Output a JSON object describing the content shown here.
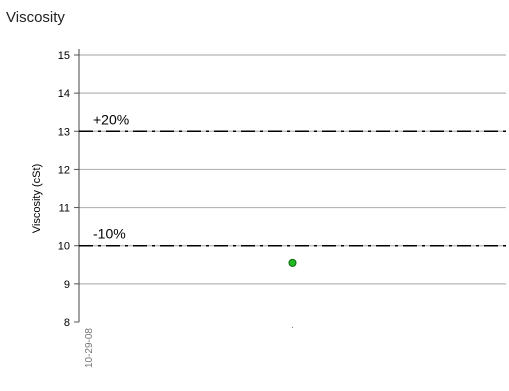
{
  "chart_data": {
    "type": "scatter",
    "title": "Viscosity",
    "xlabel": "",
    "ylabel": "Viscosity (cSt)",
    "ylim": [
      8,
      15
    ],
    "yticks": [
      8,
      9,
      10,
      11,
      12,
      13,
      14,
      15
    ],
    "x_ticks": [
      {
        "label": "10-29-08",
        "pos": 0
      },
      {
        "label": ".",
        "pos": 0.5
      }
    ],
    "grid": true,
    "points": [
      {
        "x": 0.5,
        "y": 9.55,
        "color": "#22bb22"
      }
    ],
    "reference_lines": [
      {
        "label": "+20%",
        "value": 13
      },
      {
        "label": "-10%",
        "value": 10
      }
    ]
  }
}
